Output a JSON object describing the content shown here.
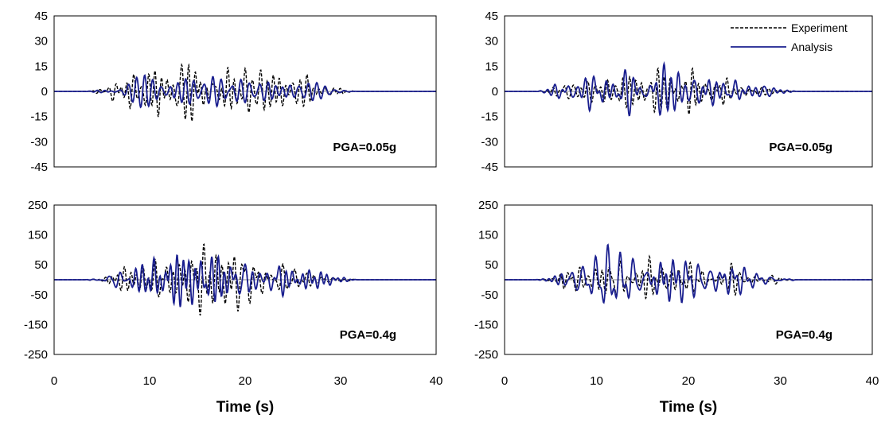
{
  "chart_data": [
    {
      "type": "line",
      "panel": "top-left",
      "annotation": "PGA=0.05g",
      "xlabel": "",
      "ylabel": "",
      "xlim": [
        0,
        40
      ],
      "ylim": [
        -45,
        45
      ],
      "yticks": [
        "45",
        "30",
        "15",
        "0",
        "-15",
        "-30",
        "-45"
      ],
      "legend": null,
      "series": [
        {
          "name": "Experiment",
          "style": "dashed",
          "color": "#000000",
          "amp": 14,
          "seed": 1
        },
        {
          "name": "Analysis",
          "style": "solid",
          "color": "#1a1f8f",
          "amp": 12,
          "seed": 2
        }
      ]
    },
    {
      "type": "line",
      "panel": "top-right",
      "annotation": "PGA=0.05g",
      "xlabel": "",
      "ylabel": "",
      "xlim": [
        0,
        40
      ],
      "ylim": [
        -45,
        45
      ],
      "yticks": [
        "45",
        "30",
        "15",
        "0",
        "-15",
        "-30",
        "-45"
      ],
      "legend": {
        "placement": "top-right",
        "entries": [
          "Experiment",
          "Analysis"
        ]
      },
      "series": [
        {
          "name": "Experiment",
          "style": "dashed",
          "color": "#000000",
          "amp": 11,
          "seed": 3
        },
        {
          "name": "Analysis",
          "style": "solid",
          "color": "#1a1f8f",
          "amp": 14,
          "seed": 4
        }
      ]
    },
    {
      "type": "line",
      "panel": "bottom-left",
      "annotation": "PGA=0.4g",
      "xlabel": "Time (s)",
      "ylabel": "",
      "xlim": [
        0,
        40
      ],
      "ylim": [
        -250,
        250
      ],
      "yticks": [
        "250",
        "150",
        "50",
        "-50",
        "-150",
        "-250"
      ],
      "xticks": [
        "0",
        "10",
        "20",
        "30",
        "40"
      ],
      "legend": null,
      "series": [
        {
          "name": "Experiment",
          "style": "dashed",
          "color": "#000000",
          "amp": 85,
          "seed": 5
        },
        {
          "name": "Analysis",
          "style": "solid",
          "color": "#1a1f8f",
          "amp": 80,
          "seed": 6
        }
      ]
    },
    {
      "type": "line",
      "panel": "bottom-right",
      "annotation": "PGA=0.4g",
      "xlabel": "Time (s)",
      "ylabel": "",
      "xlim": [
        0,
        40
      ],
      "ylim": [
        -250,
        250
      ],
      "yticks": [
        "250",
        "150",
        "50",
        "-50",
        "-150",
        "-250"
      ],
      "xticks": [
        "0",
        "10",
        "20",
        "30",
        "40"
      ],
      "legend": null,
      "series": [
        {
          "name": "Experiment",
          "style": "dashed",
          "color": "#000000",
          "amp": 75,
          "seed": 7
        },
        {
          "name": "Analysis",
          "style": "solid",
          "color": "#1a1f8f",
          "amp": 110,
          "seed": 8
        }
      ]
    }
  ]
}
